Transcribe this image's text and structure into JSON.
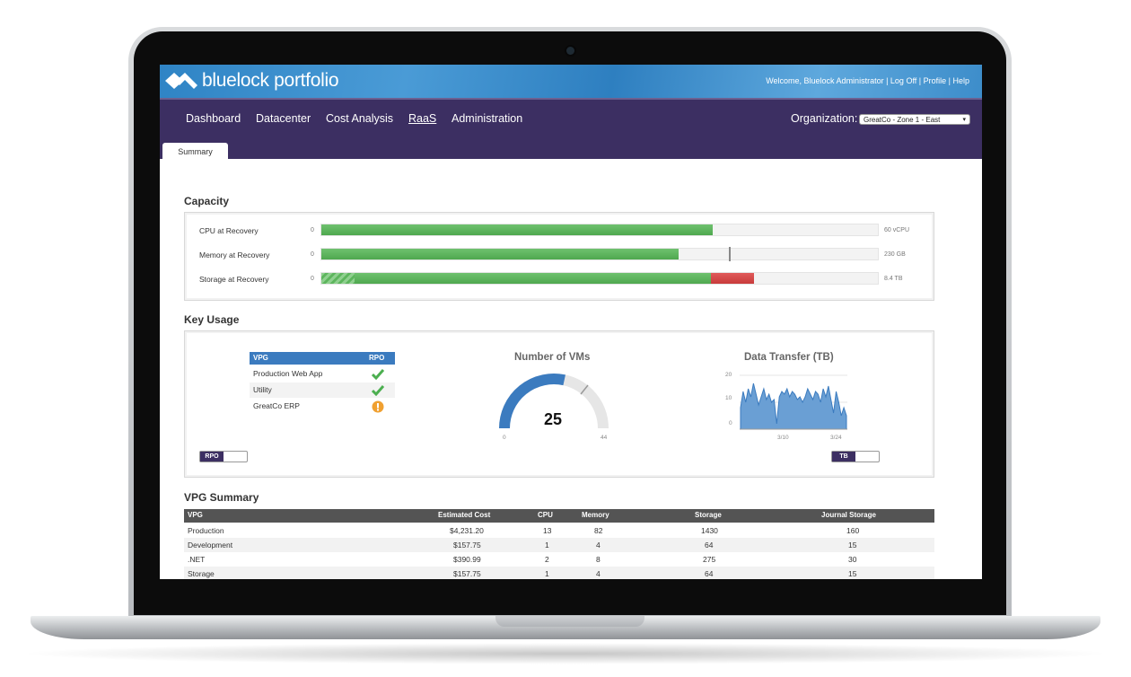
{
  "header": {
    "brand": "bluelock portfolio",
    "links": [
      "Welcome, Bluelock Administrator",
      "Log Off",
      "Profile",
      "Help"
    ]
  },
  "nav": {
    "items": [
      "Dashboard",
      "Datacenter",
      "Cost Analysis",
      "RaaS",
      "Administration"
    ],
    "active": "RaaS",
    "org_label": "Organization:",
    "org_value": "GreatCo - Zone 1 - East"
  },
  "tabs": [
    "Summary"
  ],
  "capacity": {
    "title": "Capacity",
    "rows": [
      {
        "label": "CPU at Recovery",
        "min": "0",
        "max": "60 vCPU",
        "fill_pct": 70,
        "mark_pct": 70
      },
      {
        "label": "Memory at Recovery",
        "min": "0",
        "max": "230 GB",
        "fill_pct": 64,
        "mark_pct": 73
      },
      {
        "label": "Storage at Recovery",
        "min": "0",
        "max": "8.4 TB",
        "fill_pct": 70,
        "red_pct": 8,
        "hatch_pct": 6
      }
    ]
  },
  "key_usage": {
    "title": "Key Usage",
    "vpg_table": {
      "headers": [
        "VPG",
        "RPO"
      ],
      "rows": [
        {
          "name": "Production Web App",
          "status": "ok"
        },
        {
          "name": "Utility",
          "status": "ok"
        },
        {
          "name": "GreatCo ERP",
          "status": "warning"
        }
      ],
      "toggle": "RPO"
    },
    "vms": {
      "title": "Number of VMs",
      "value": "25",
      "min": "0",
      "max": "44"
    },
    "transfer": {
      "title": "Data Transfer (TB)",
      "y_ticks": [
        "20",
        "10",
        "0"
      ],
      "x_ticks": [
        "3/10",
        "3/24"
      ],
      "toggle": "TB"
    }
  },
  "chart_data": {
    "type": "area",
    "title": "Data Transfer (TB)",
    "ylim": [
      0,
      20
    ],
    "x_tick_labels": [
      "3/10",
      "3/24"
    ],
    "values": [
      8,
      14,
      10,
      15,
      12,
      17,
      13,
      9,
      12,
      15,
      11,
      13,
      10,
      11,
      2,
      12,
      14,
      13,
      15,
      12,
      14,
      13,
      11,
      12,
      10,
      12,
      15,
      13,
      11,
      14,
      13,
      10,
      15,
      12,
      16,
      11,
      6,
      14,
      10,
      5,
      8,
      5
    ]
  },
  "vpg_summary": {
    "title": "VPG Summary",
    "headers": [
      "VPG",
      "Estimated Cost",
      "CPU",
      "Memory",
      "Storage",
      "Journal Storage"
    ],
    "rows": [
      [
        "Production",
        "$4,231.20",
        "13",
        "82",
        "1430",
        "160"
      ],
      [
        "Development",
        "$157.75",
        "1",
        "4",
        "64",
        "15"
      ],
      [
        ".NET",
        "$390.99",
        "2",
        "8",
        "275",
        "30"
      ],
      [
        "Storage",
        "$157.75",
        "1",
        "4",
        "64",
        "15"
      ]
    ]
  },
  "colors": {
    "nav_bg": "#3c2f62",
    "topbar_blue": "#3d8dca",
    "bar_green": "#5cb85c",
    "bar_red": "#d9534f",
    "gauge_blue": "#3b7bbf",
    "ok_icon": "#4caf50",
    "warn_icon": "#f0a030"
  },
  "icons": [
    "bluelock-logo-icon",
    "checkmark-icon",
    "warning-icon",
    "select-arrow-icon"
  ]
}
